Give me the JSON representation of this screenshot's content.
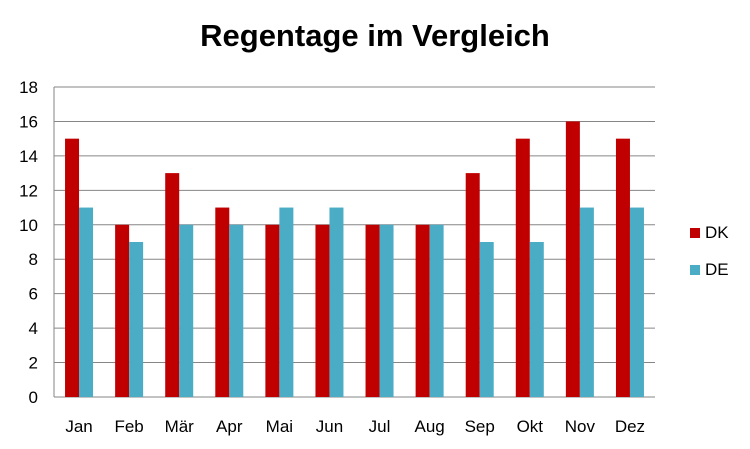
{
  "chart_data": {
    "type": "bar",
    "title": "Regentage im Vergleich",
    "xlabel": "",
    "ylabel": "",
    "categories": [
      "Jan",
      "Feb",
      "Mär",
      "Apr",
      "Mai",
      "Jun",
      "Jul",
      "Aug",
      "Sep",
      "Okt",
      "Nov",
      "Dez"
    ],
    "series": [
      {
        "name": "DK",
        "color": "#c00000",
        "values": [
          15,
          10,
          13,
          11,
          10,
          10,
          10,
          10,
          13,
          15,
          16,
          15
        ]
      },
      {
        "name": "DE",
        "color": "#4bacc6",
        "values": [
          11,
          9,
          10,
          10,
          11,
          11,
          10,
          10,
          9,
          9,
          11,
          11
        ]
      }
    ],
    "ylim": [
      0,
      18
    ],
    "yticks": [
      0,
      2,
      4,
      6,
      8,
      10,
      12,
      14,
      16,
      18
    ],
    "grid": true,
    "legend_position": "right"
  }
}
